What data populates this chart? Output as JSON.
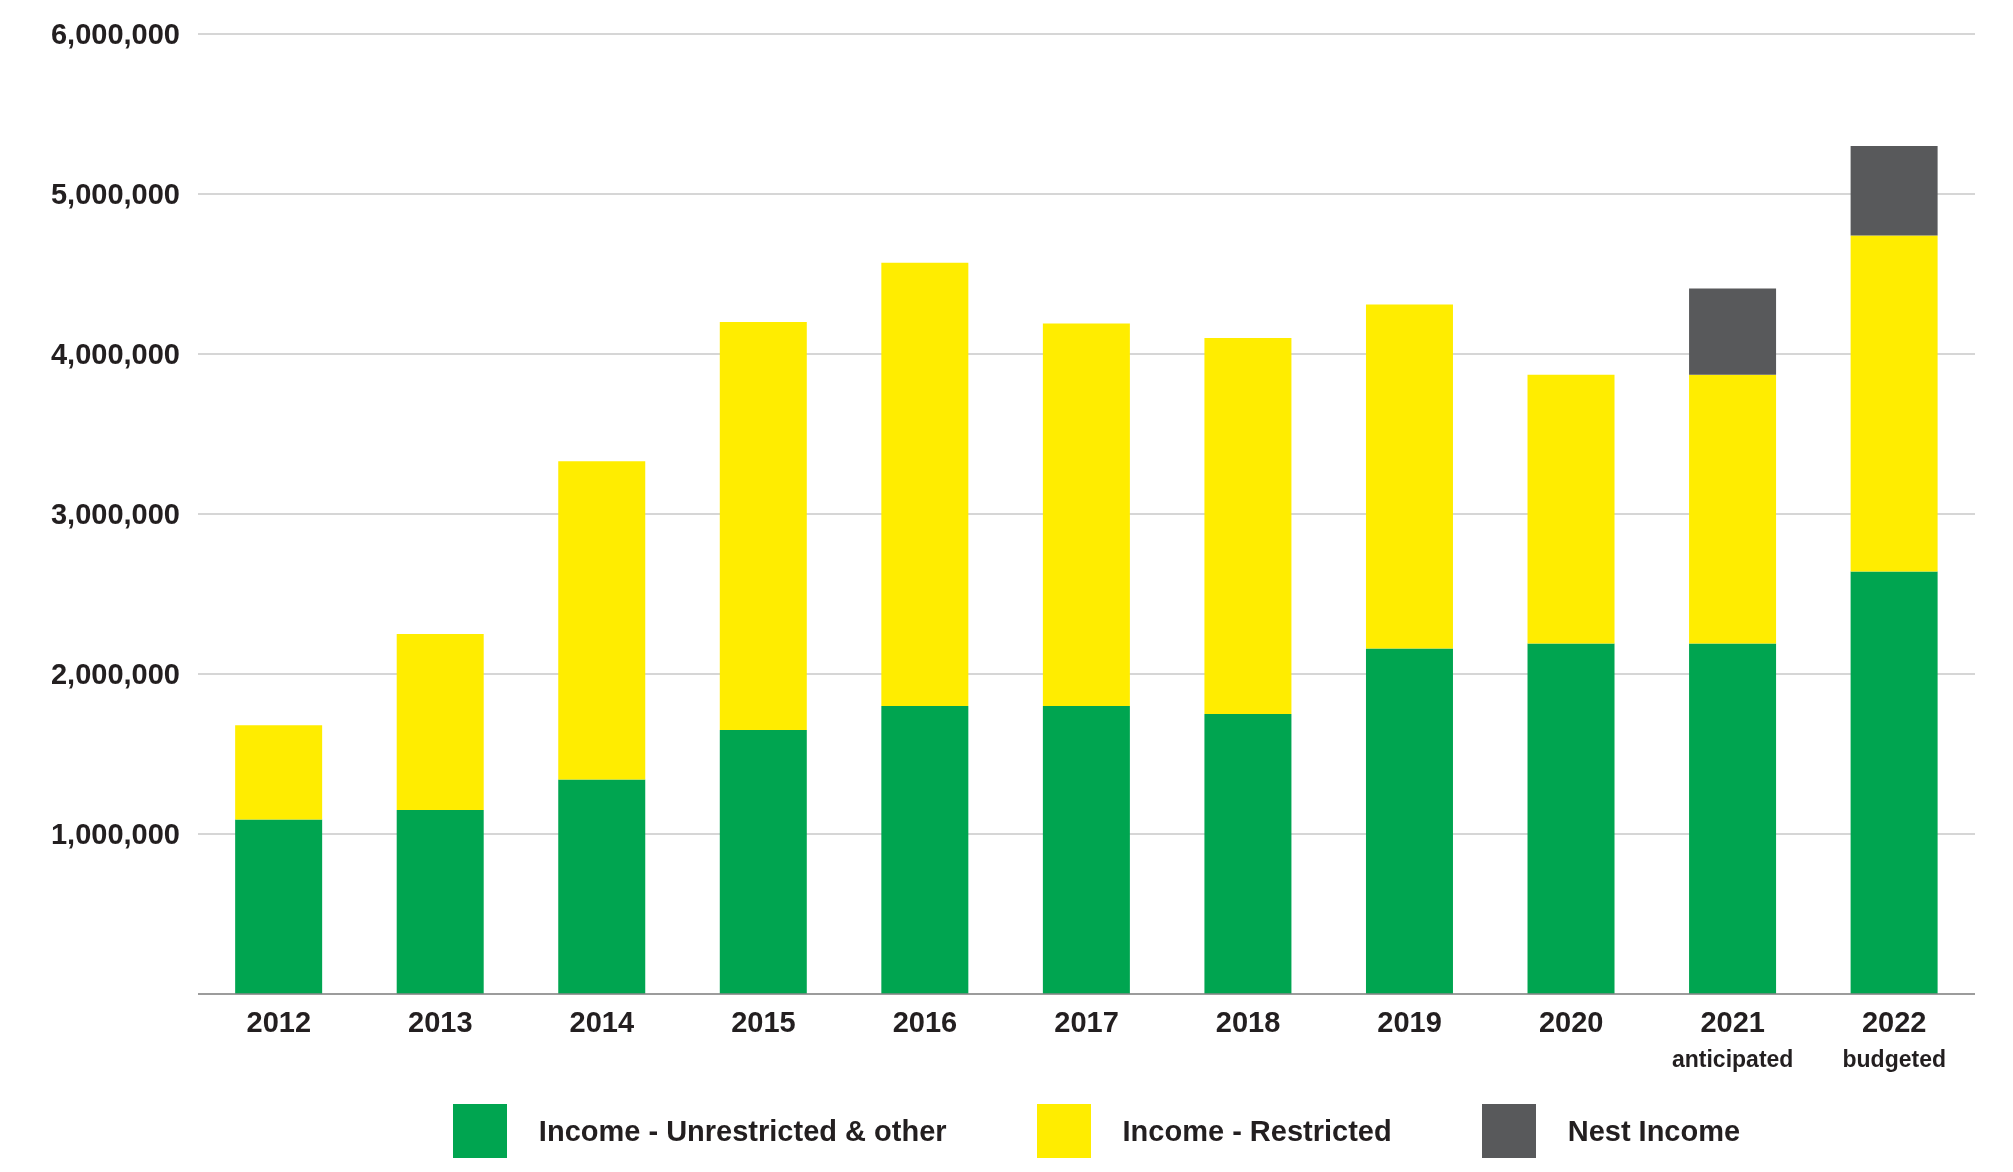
{
  "chart_data": {
    "type": "bar",
    "stacked": true,
    "categories": [
      "2012",
      "2013",
      "2014",
      "2015",
      "2016",
      "2017",
      "2018",
      "2019",
      "2020",
      "2021\nanticipated",
      "2022\nbudgeted"
    ],
    "series": [
      {
        "name": "Income - Unrestricted & other",
        "color": "#00a550",
        "values": [
          1090000,
          1150000,
          1340000,
          1650000,
          1800000,
          1800000,
          1750000,
          2160000,
          2190000,
          2190000,
          2640000
        ]
      },
      {
        "name": "Income - Restricted",
        "color": "#ffed00",
        "values": [
          590000,
          1100000,
          1990000,
          2550000,
          2770000,
          2390000,
          2350000,
          2150000,
          1680000,
          1680000,
          2100000
        ]
      },
      {
        "name": "Nest Income",
        "color": "#58595b",
        "values": [
          null,
          null,
          null,
          null,
          null,
          null,
          null,
          null,
          null,
          540000,
          560000
        ]
      }
    ],
    "ylim": [
      0,
      6000000
    ],
    "yticks": [
      {
        "value": 0,
        "label": null
      },
      {
        "value": 1000000,
        "label": "1,000,000"
      },
      {
        "value": 2000000,
        "label": "2,000,000"
      },
      {
        "value": 3000000,
        "label": "3,000,000"
      },
      {
        "value": 4000000,
        "label": "4,000,000"
      },
      {
        "value": 5000000,
        "label": "5,000,000"
      },
      {
        "value": 6000000,
        "label": "6,000,000"
      }
    ],
    "grid": "y",
    "legend": "bottom"
  }
}
